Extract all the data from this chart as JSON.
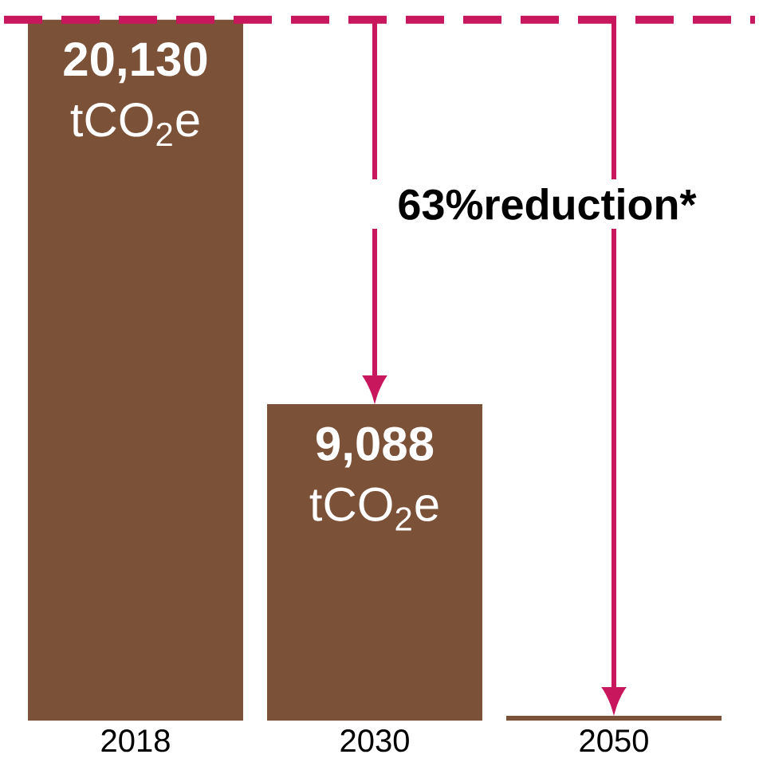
{
  "chart_data": {
    "type": "bar",
    "categories": [
      "2018",
      "2030",
      "2050"
    ],
    "values": [
      20130,
      9088,
      140
    ],
    "value_labels": [
      "**20,130** tCO$_{2}$e",
      "**9,088** tCO$_{2}$e",
      null
    ],
    "color": "#7b5138",
    "ref_lines": [
      {
        "axis": "y",
        "value": 20130,
        "color": "#c8175d",
        "line_style": "dashed"
      }
    ],
    "annotations": [
      "63%reduction*"
    ]
  }
}
